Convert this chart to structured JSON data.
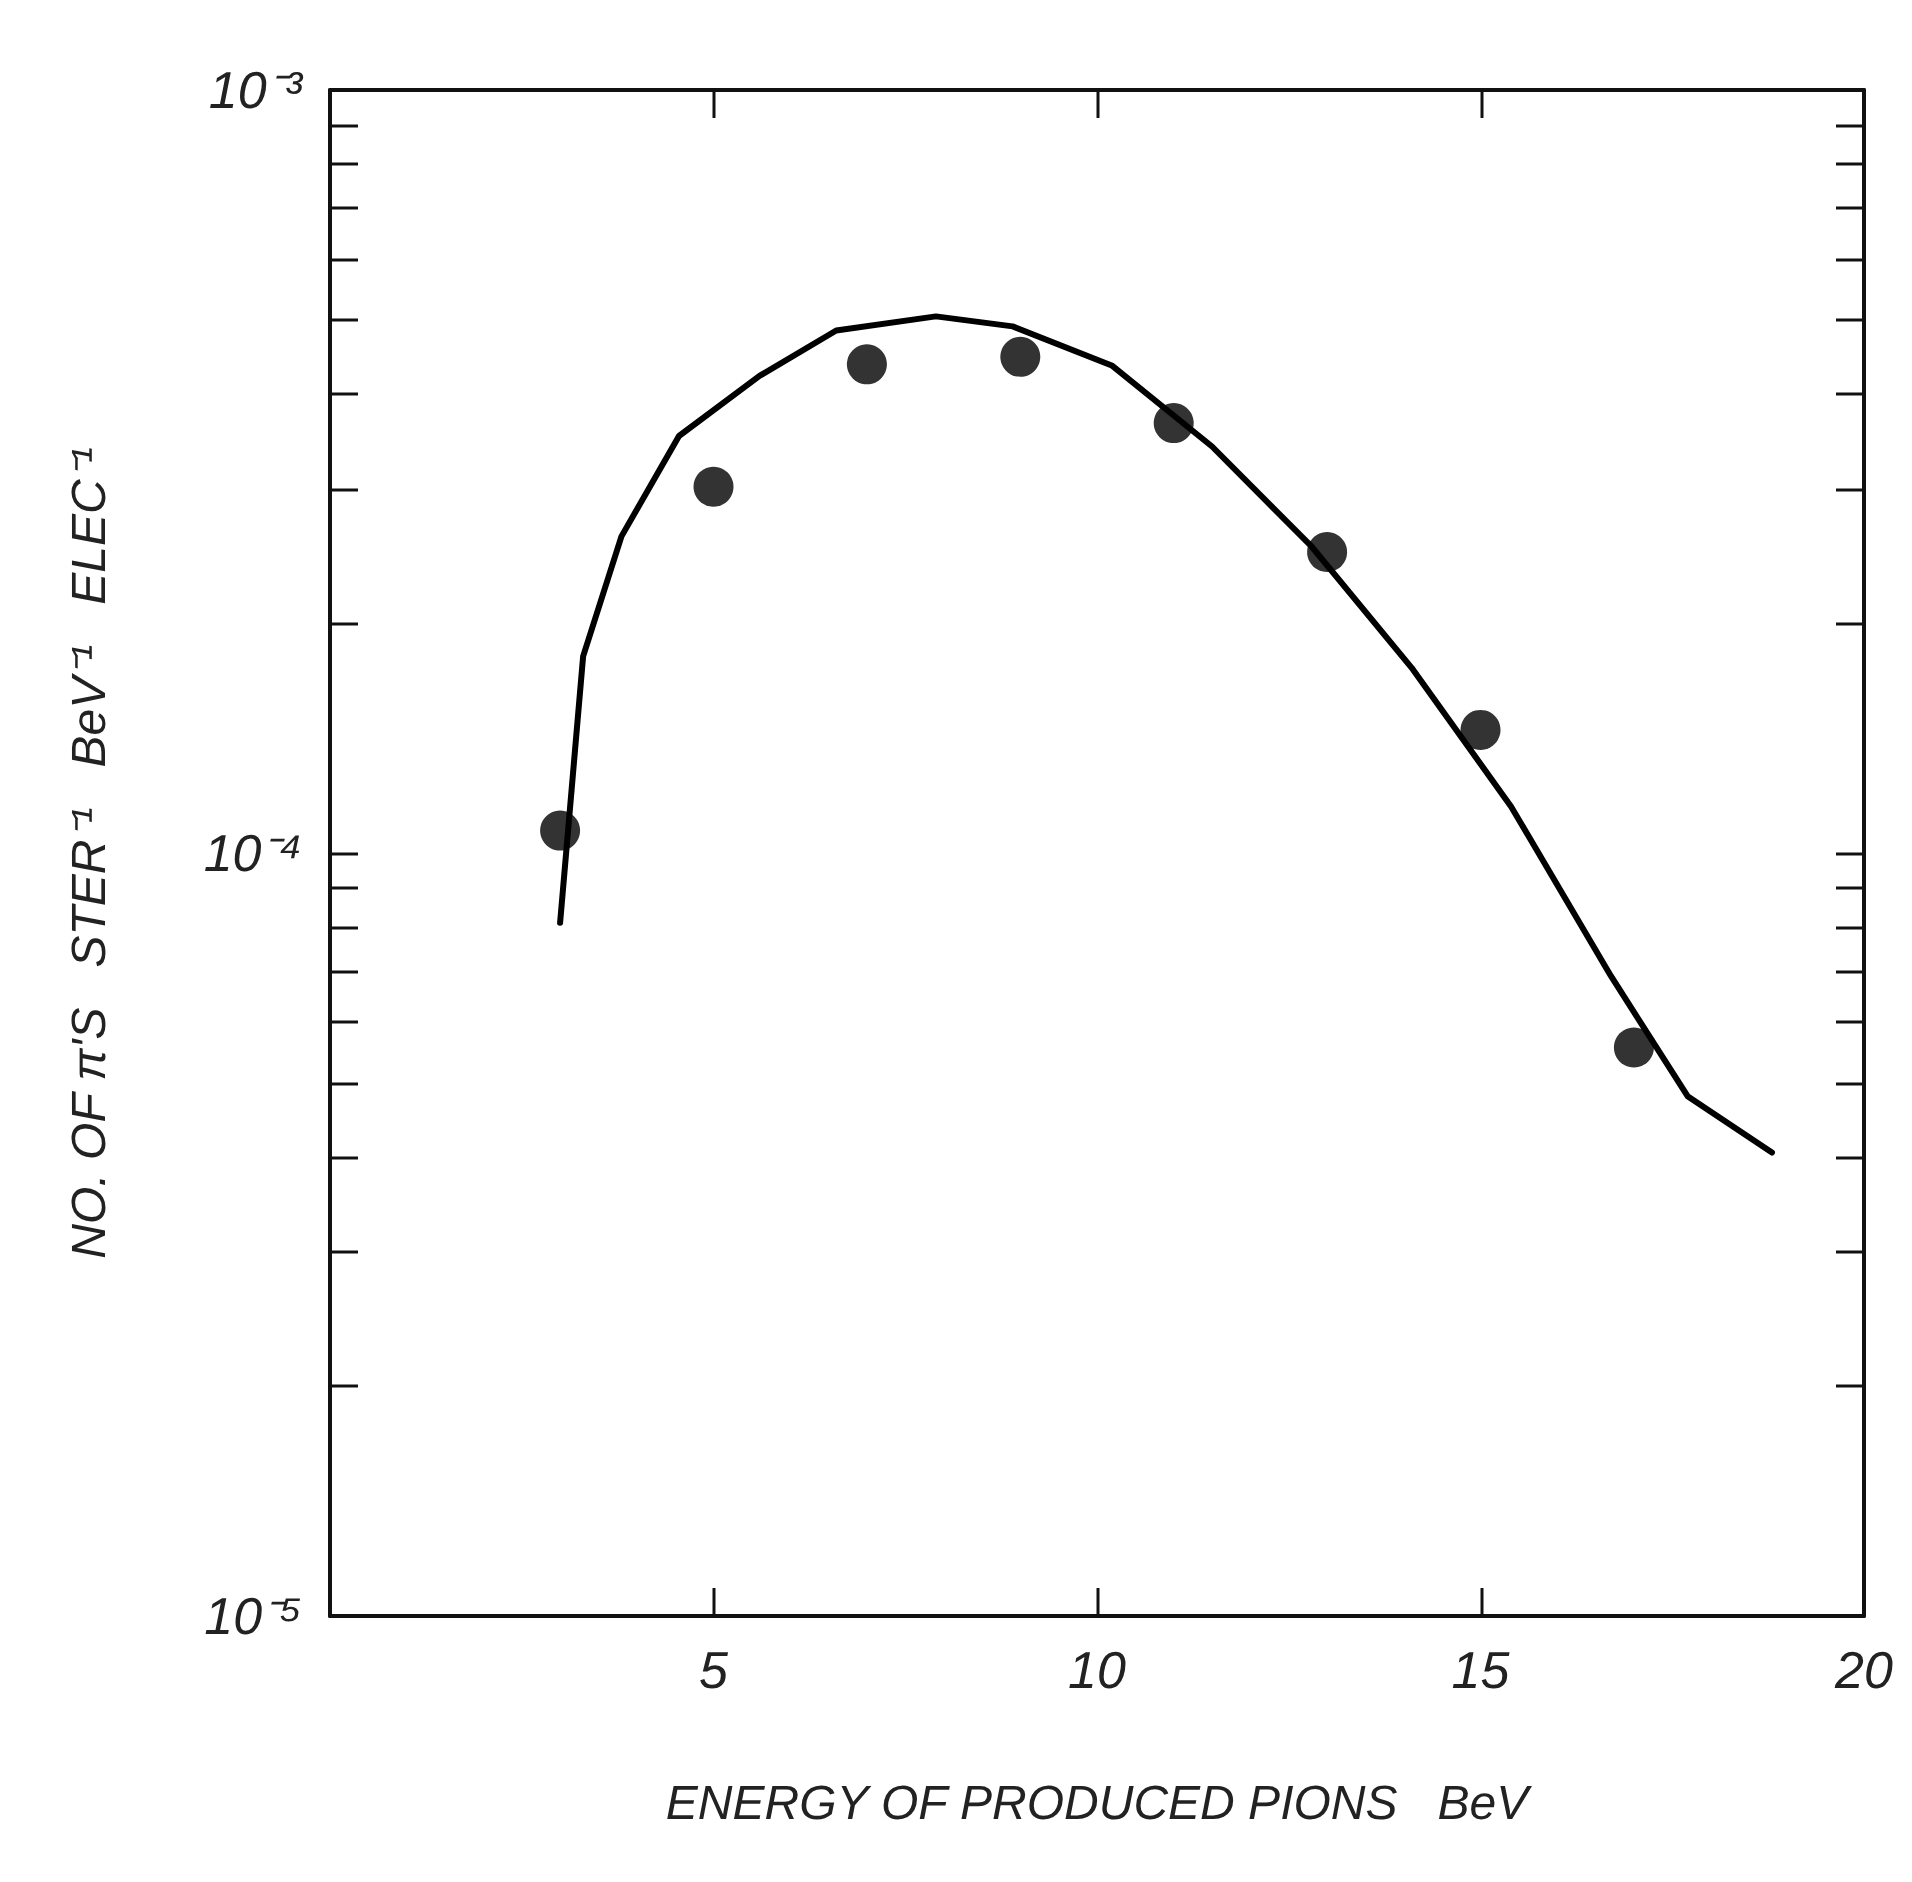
{
  "chart_data": {
    "type": "scatter",
    "xlabel": "ENERGY OF PRODUCED PIONS   BeV",
    "ylabel": "NO. OF π'S   STER⁻¹   BeV⁻¹   ELEC⁻¹",
    "log": "y",
    "grid": false,
    "xlim": [
      0,
      20
    ],
    "xticks": [
      5,
      10,
      15,
      20
    ],
    "ylim": [
      1e-05,
      0.001
    ],
    "yticks": [
      {
        "value": 1e-05,
        "label": "10⁻⁵"
      },
      {
        "value": 2e-05,
        "label": null
      },
      {
        "value": 3e-05,
        "label": null
      },
      {
        "value": 4e-05,
        "label": null
      },
      {
        "value": 5e-05,
        "label": null
      },
      {
        "value": 6e-05,
        "label": null
      },
      {
        "value": 7e-05,
        "label": null
      },
      {
        "value": 8e-05,
        "label": null
      },
      {
        "value": 9e-05,
        "label": null
      },
      {
        "value": 0.0001,
        "label": "10⁻⁴"
      },
      {
        "value": 0.0002,
        "label": null
      },
      {
        "value": 0.0003,
        "label": null
      },
      {
        "value": 0.0004,
        "label": null
      },
      {
        "value": 0.0005,
        "label": null
      },
      {
        "value": 0.0006,
        "label": null
      },
      {
        "value": 0.0007,
        "label": null
      },
      {
        "value": 0.0008,
        "label": null
      },
      {
        "value": 0.0009,
        "label": null
      },
      {
        "value": 0.001,
        "label": "10⁻³"
      }
    ],
    "series": [
      {
        "color": "#000000",
        "marker": "circle",
        "x": [
          3,
          5,
          7,
          9,
          11,
          13,
          15,
          17
        ],
        "values": [
          0.000107,
          0.000302,
          0.000437,
          0.000447,
          0.000366,
          0.000248,
          0.000145,
          5.56e-05
        ]
      },
      {
        "type": "line",
        "color": "#000000",
        "marker": "none",
        "line_style": "solid",
        "x": [
          3.0,
          3.3,
          3.8,
          4.55,
          5.6,
          6.6,
          7.9,
          8.9,
          10.2,
          11.5,
          12.8,
          14.1,
          15.4,
          16.7,
          17.7,
          18.8
        ],
        "values": [
          8.1e-05,
          0.000181,
          0.00026,
          0.000352,
          0.000422,
          0.000484,
          0.000505,
          0.00049,
          0.000435,
          0.000341,
          0.000252,
          0.000175,
          0.000115,
          6.9e-05,
          4.8e-05,
          4.05e-05
        ]
      }
    ]
  }
}
